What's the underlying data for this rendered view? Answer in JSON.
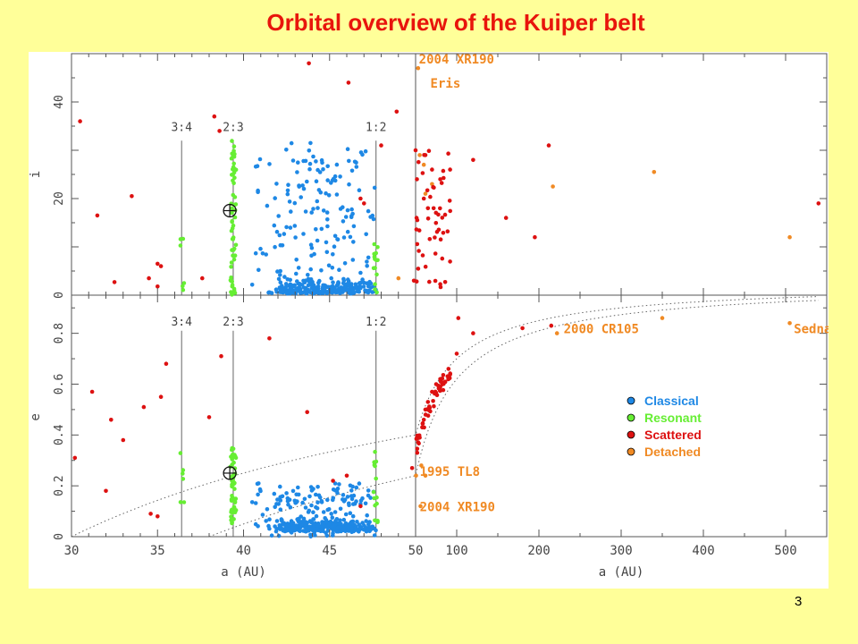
{
  "slide": {
    "title": "Orbital overview of the Kuiper belt",
    "page_number": "3",
    "background": "#ffff99"
  },
  "chart_data": {
    "type": "scatter",
    "colors": {
      "Classical": "#1e88e5",
      "Resonant": "#66ee33",
      "Scattered": "#dd1111",
      "Detached": "#f08a24"
    },
    "legend": {
      "position": "right",
      "entries": [
        "Classical",
        "Resonant",
        "Scattered",
        "Detached"
      ]
    },
    "panels": [
      {
        "id": "inc-inner",
        "ylabel": "i",
        "xlabel": "",
        "xlim": [
          30,
          50
        ],
        "ylim": [
          0,
          50
        ],
        "yticks": [
          "0",
          "20",
          "40"
        ],
        "xticks": []
      },
      {
        "id": "inc-outer",
        "ylabel": "",
        "xlabel": "",
        "xlim": [
          50,
          550
        ],
        "ylim": [
          0,
          50
        ],
        "yticks": [],
        "xticks": []
      },
      {
        "id": "ecc-inner",
        "ylabel": "e",
        "xlabel": "a (AU)",
        "xlim": [
          30,
          50
        ],
        "ylim": [
          0,
          0.95
        ],
        "yticks": [
          "0",
          "0.2",
          "0.4",
          "0.6",
          "0.8"
        ],
        "xticks": [
          "30",
          "35",
          "40",
          "45",
          "50"
        ]
      },
      {
        "id": "ecc-outer",
        "ylabel": "",
        "xlabel": "a (AU)",
        "xlim": [
          50,
          550
        ],
        "ylim": [
          0,
          0.95
        ],
        "yticks": [],
        "xticks": [
          "100",
          "200",
          "300",
          "400",
          "500"
        ]
      }
    ],
    "resonances": [
      {
        "label": "3:4",
        "a": 36.4
      },
      {
        "label": "2:3",
        "a": 39.4
      },
      {
        "label": "1:2",
        "a": 47.7
      }
    ],
    "neptune": {
      "a": 39.2,
      "i": 17.5,
      "e": 0.25
    },
    "annotations": [
      {
        "panel": "inc-outer",
        "text": "2004 XR190",
        "a": 54,
        "y": 48
      },
      {
        "panel": "inc-outer",
        "text": "Eris",
        "a": 68,
        "y": 43
      },
      {
        "panel": "ecc-outer",
        "text": "2000 CR105",
        "a": 230,
        "y": 0.8
      },
      {
        "panel": "ecc-outer",
        "text": "Sedna",
        "a": 510,
        "y": 0.8
      },
      {
        "panel": "ecc-outer",
        "text": "1995 TL8",
        "a": 55,
        "y": 0.24
      },
      {
        "panel": "ecc-outer",
        "text": "2004 XR190",
        "a": 55,
        "y": 0.1
      }
    ],
    "series": [
      {
        "name": "Scattered",
        "points_i": [
          [
            30.5,
            36
          ],
          [
            31.5,
            16.5
          ],
          [
            32.5,
            2.7
          ],
          [
            33.5,
            20.5
          ],
          [
            34.5,
            3.5
          ],
          [
            35,
            6.5
          ],
          [
            35,
            1.8
          ],
          [
            35.2,
            6
          ],
          [
            37.6,
            3.5
          ],
          [
            38.3,
            37
          ],
          [
            38.6,
            34
          ],
          [
            43.8,
            48
          ],
          [
            46.1,
            44
          ],
          [
            46.8,
            20
          ],
          [
            47,
            19
          ],
          [
            48,
            31
          ],
          [
            48.9,
            38
          ],
          [
            49.9,
            3
          ],
          [
            50,
            30
          ],
          [
            51.6,
            24
          ],
          [
            51.2,
            16
          ],
          [
            62,
            29
          ],
          [
            60,
            20
          ],
          [
            65,
            18
          ],
          [
            70,
            26
          ],
          [
            72,
            18
          ],
          [
            80,
            24
          ],
          [
            92,
            26
          ],
          [
            120,
            28
          ],
          [
            160,
            16
          ],
          [
            212,
            31
          ],
          [
            195,
            12
          ],
          [
            540,
            19
          ]
        ],
        "points_e": [
          [
            30.2,
            0.31
          ],
          [
            31.2,
            0.57
          ],
          [
            32,
            0.18
          ],
          [
            32.3,
            0.46
          ],
          [
            33,
            0.38
          ],
          [
            34.2,
            0.51
          ],
          [
            34.6,
            0.09
          ],
          [
            35,
            0.08
          ],
          [
            35.2,
            0.55
          ],
          [
            35.5,
            0.68
          ],
          [
            38,
            0.47
          ],
          [
            38.7,
            0.71
          ],
          [
            41.5,
            0.78
          ],
          [
            43.7,
            0.49
          ],
          [
            45.2,
            0.22
          ],
          [
            46,
            0.24
          ],
          [
            46.8,
            0.12
          ],
          [
            49.8,
            0.27
          ],
          [
            52,
            0.33
          ],
          [
            55,
            0.39
          ],
          [
            58,
            0.43
          ],
          [
            60,
            0.46
          ],
          [
            62,
            0.5
          ],
          [
            65,
            0.53
          ],
          [
            70,
            0.57
          ],
          [
            75,
            0.6
          ],
          [
            80,
            0.62
          ],
          [
            90,
            0.66
          ],
          [
            100,
            0.72
          ],
          [
            102,
            0.86
          ],
          [
            120,
            0.8
          ],
          [
            180,
            0.82
          ],
          [
            215,
            0.83
          ]
        ]
      },
      {
        "name": "Detached",
        "points_i": [
          [
            53,
            47
          ],
          [
            55,
            29
          ],
          [
            62,
            21
          ],
          [
            70,
            23
          ],
          [
            340,
            25.5
          ],
          [
            505,
            12
          ],
          [
            217,
            22.5
          ],
          [
            49,
            3.5
          ],
          [
            60,
            27
          ]
        ],
        "points_e": [
          [
            50.5,
            0.24
          ],
          [
            57,
            0.28
          ],
          [
            62,
            0.24
          ],
          [
            222,
            0.8
          ],
          [
            350,
            0.86
          ],
          [
            505,
            0.84
          ],
          [
            56,
            0.12
          ]
        ]
      }
    ]
  }
}
